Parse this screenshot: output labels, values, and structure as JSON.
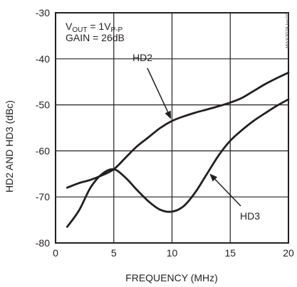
{
  "chart_data": {
    "type": "line",
    "xlabel": "FREQUENCY (MHz)",
    "ylabel": "HD2 AND HD3 (dBc)",
    "xlim": [
      0,
      20
    ],
    "ylim": [
      -80,
      -30
    ],
    "x_ticks": [
      0,
      5,
      10,
      15,
      20
    ],
    "y_ticks": [
      -30,
      -40,
      -50,
      -60,
      -70,
      -80
    ],
    "grid": true,
    "conditions": {
      "vout_prefix": "V",
      "vout_sub": "OUT",
      "vout_value": " = 1V",
      "vout_value_sub": "P-P",
      "gain": "GAIN = 26dB"
    },
    "watermark": "MAX2078 toc10",
    "series": [
      {
        "name": "HD2",
        "x": [
          1,
          2,
          3,
          4,
          5,
          6,
          7,
          8,
          9,
          10,
          11,
          12,
          13,
          14,
          15,
          16,
          17,
          18,
          19,
          20
        ],
        "y": [
          -68,
          -67,
          -66.3,
          -65.3,
          -64,
          -61.5,
          -59,
          -57,
          -55,
          -53.5,
          -52.5,
          -51.7,
          -51,
          -50.3,
          -49.5,
          -48.5,
          -47,
          -45.5,
          -44.2,
          -43
        ]
      },
      {
        "name": "HD3",
        "x": [
          1,
          2,
          3,
          4,
          5,
          6,
          7,
          8,
          9,
          10,
          11,
          12,
          13,
          14,
          15,
          16,
          17,
          18,
          19,
          20
        ],
        "y": [
          -76.5,
          -73,
          -68,
          -65,
          -64,
          -65.8,
          -68.5,
          -71,
          -72.8,
          -73.2,
          -72,
          -69,
          -65,
          -61,
          -57.8,
          -55.5,
          -53.5,
          -51.8,
          -50.2,
          -48.8
        ]
      }
    ],
    "annotations": [
      {
        "text": "HD2",
        "series": "HD2",
        "arrow_to_x": 10.0
      },
      {
        "text": "HD3",
        "series": "HD3",
        "arrow_to_x": 13.1
      }
    ]
  }
}
